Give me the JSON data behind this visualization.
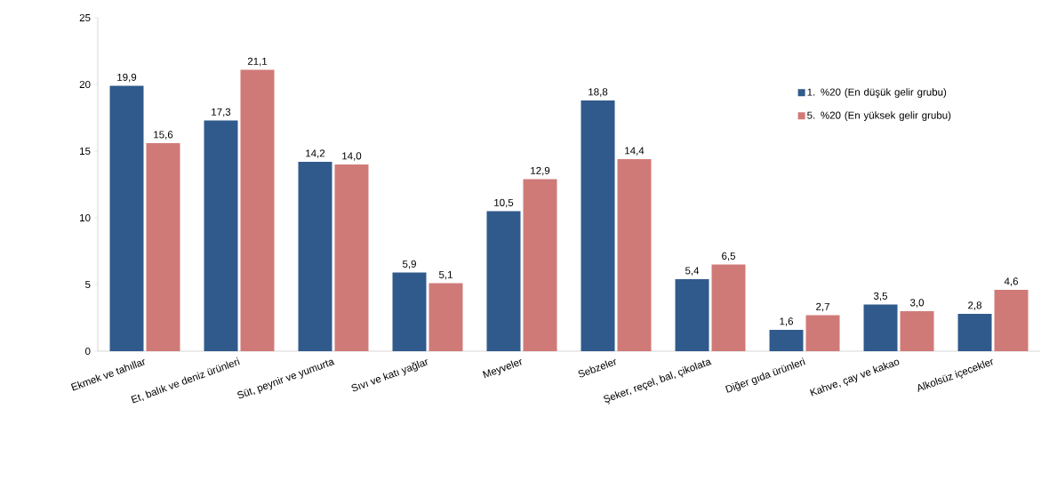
{
  "chart_data": {
    "type": "bar",
    "categories": [
      "Ekmek ve tahıllar",
      "Et, balık ve deniz ürünleri",
      "Süt, peynir ve yumurta",
      "Sıvı ve katı yağlar",
      "Meyveler",
      "Sebzeler",
      "Şeker, reçel, bal, çikolata",
      "Diğer gıda ürünleri",
      "Kahve, çay ve kakao",
      "Alkolsüz içecekler"
    ],
    "series": [
      {
        "name": "1. %20 (En düşük gelir grubu)",
        "color": "#305a8c",
        "values": [
          19.9,
          17.3,
          14.2,
          5.9,
          10.5,
          18.8,
          5.4,
          1.6,
          3.5,
          2.8
        ],
        "value_labels": [
          "19,9",
          "17,3",
          "14,2",
          "5,9",
          "10,5",
          "18,8",
          "5,4",
          "1,6",
          "3,5",
          "2,8"
        ]
      },
      {
        "name": "5. %20 (En yüksek gelir grubu)",
        "color": "#d07a78",
        "values": [
          15.6,
          21.1,
          14.0,
          5.1,
          12.9,
          14.4,
          6.5,
          2.7,
          3.0,
          4.6
        ],
        "value_labels": [
          "15,6",
          "21,1",
          "14,0",
          "5,1",
          "12,9",
          "14,4",
          "6,5",
          "2,7",
          "3,0",
          "4,6"
        ]
      }
    ],
    "ylim": [
      0,
      25
    ],
    "yticks": [
      0,
      5,
      10,
      15,
      20,
      25
    ],
    "grid": false,
    "legend": "right"
  }
}
